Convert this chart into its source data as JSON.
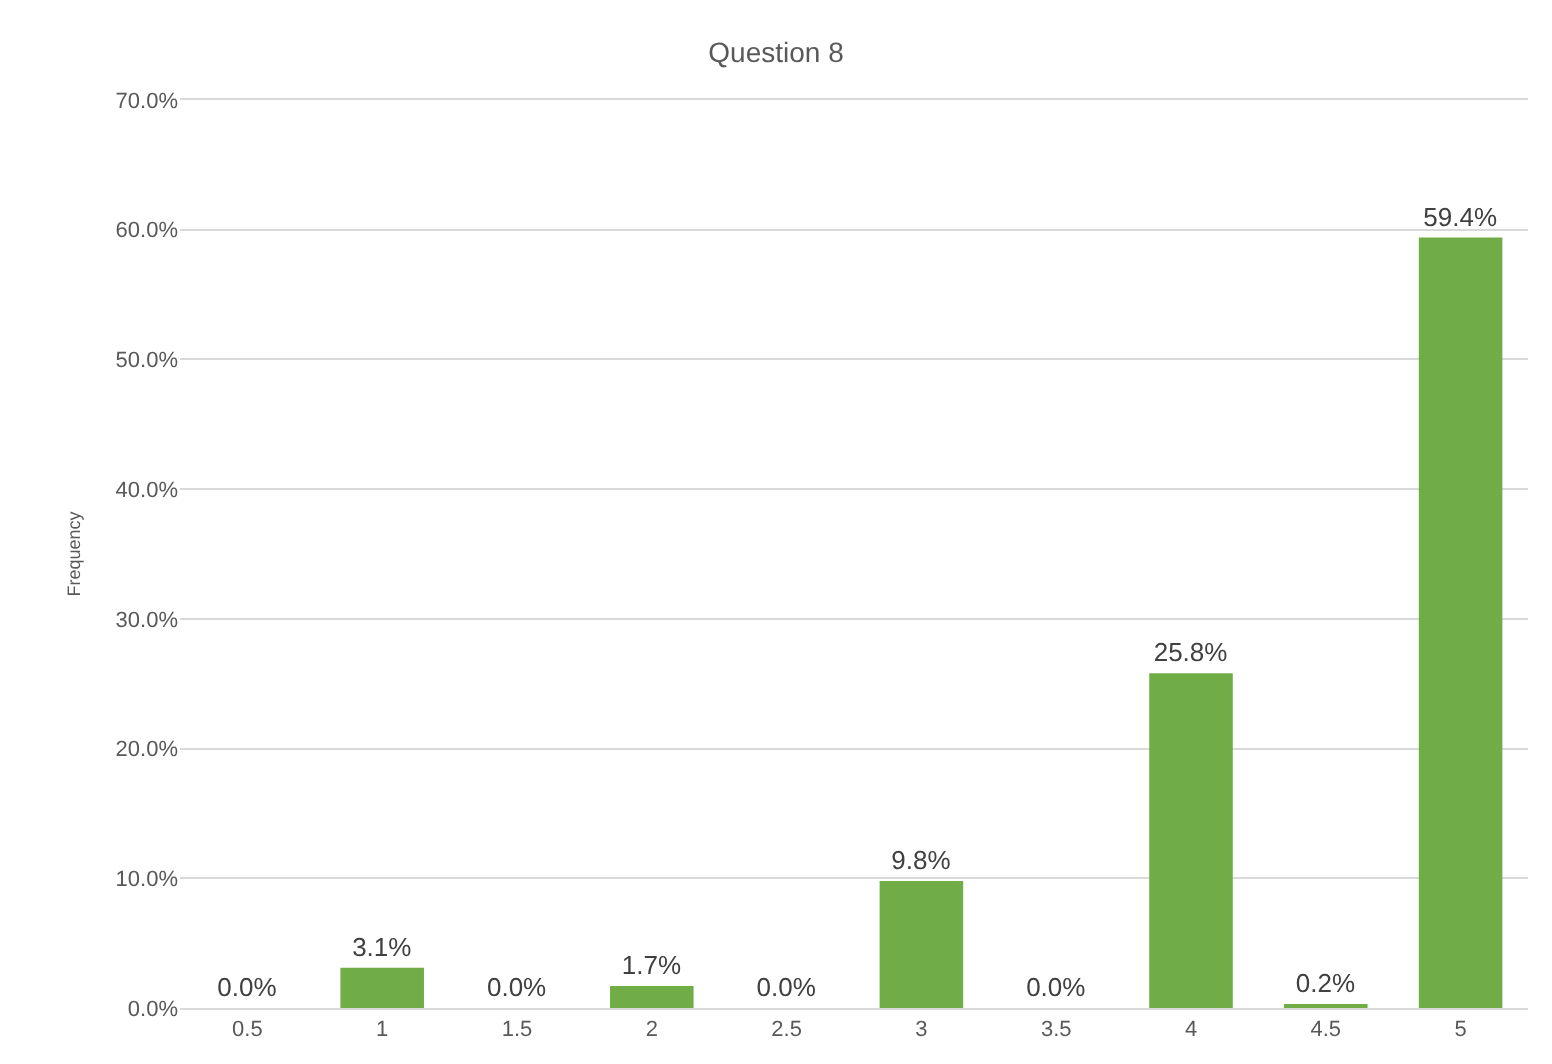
{
  "chart_data": {
    "type": "bar",
    "title": "Question 8",
    "ylabel": "Frequency",
    "categories": [
      "0.5",
      "1",
      "1.5",
      "2",
      "2.5",
      "3",
      "3.5",
      "4",
      "4.5",
      "5"
    ],
    "values": [
      0.0,
      3.1,
      0.0,
      1.7,
      0.0,
      9.8,
      0.0,
      25.8,
      0.2,
      59.4
    ],
    "value_labels": [
      "0.0%",
      "3.1%",
      "0.0%",
      "1.7%",
      "0.0%",
      "9.8%",
      "0.0%",
      "25.8%",
      "0.2%",
      "59.4%"
    ],
    "color": "#70ad47",
    "ylim": [
      0,
      70
    ],
    "yticks": [
      {
        "value": 0,
        "label": "0.0%"
      },
      {
        "value": 10,
        "label": "10.0%"
      },
      {
        "value": 20,
        "label": "20.0%"
      },
      {
        "value": 30,
        "label": "30.0%"
      },
      {
        "value": 40,
        "label": "40.0%"
      },
      {
        "value": 50,
        "label": "50.0%"
      },
      {
        "value": 60,
        "label": "60.0%"
      },
      {
        "value": 70,
        "label": "70.0%"
      }
    ],
    "grid": "y",
    "legend": false
  }
}
